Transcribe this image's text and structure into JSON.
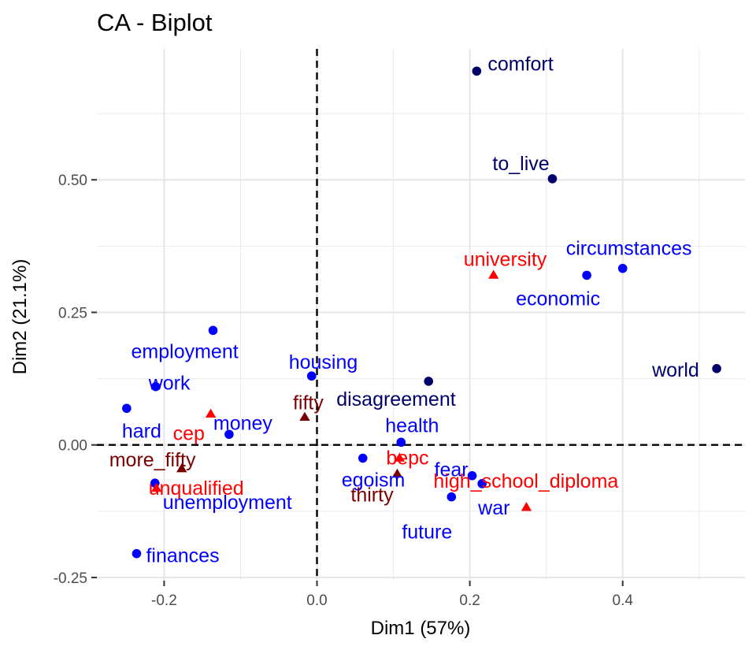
{
  "chart_data": {
    "type": "scatter",
    "title": "CA - Biplot",
    "xlabel": "Dim1 (57%)",
    "ylabel": "Dim2 (21.1%)",
    "xlim": [
      -0.288,
      0.56
    ],
    "ylim": [
      -0.256,
      0.747
    ],
    "x_ticks": [
      -0.2,
      0.0,
      0.2,
      0.4
    ],
    "x_tick_labels": [
      "-0.2",
      "0.0",
      "0.2",
      "0.4"
    ],
    "y_ticks": [
      -0.25,
      0.0,
      0.25,
      0.5
    ],
    "y_tick_labels": [
      "-0.25",
      "0.00",
      "0.25",
      "0.50"
    ],
    "grid": true,
    "reference_lines": [
      0,
      0
    ],
    "colors": {
      "words_navy": "#00006b",
      "words_blue": "#0000ff",
      "edu_red": "#ff0000",
      "age_darkred": "#7a0000"
    },
    "points": [
      {
        "label": "comfort",
        "x": 0.209,
        "y": 0.705,
        "shape": "circle",
        "color": "#00006b"
      },
      {
        "label": "to_live",
        "x": 0.308,
        "y": 0.502,
        "shape": "circle",
        "color": "#00006b"
      },
      {
        "label": "world",
        "x": 0.523,
        "y": 0.144,
        "shape": "circle",
        "color": "#00006b"
      },
      {
        "label": "disagreement",
        "x": 0.146,
        "y": 0.12,
        "shape": "circle",
        "color": "#00006b"
      },
      {
        "label": "circumstances",
        "x": 0.4,
        "y": 0.333,
        "shape": "circle",
        "color": "#0000ff"
      },
      {
        "label": "economic",
        "x": 0.353,
        "y": 0.32,
        "shape": "circle",
        "color": "#0000ff"
      },
      {
        "label": "employment",
        "x": -0.136,
        "y": 0.216,
        "shape": "circle",
        "color": "#0000ff"
      },
      {
        "label": "housing",
        "x": -0.007,
        "y": 0.13,
        "shape": "circle",
        "color": "#0000ff"
      },
      {
        "label": "work",
        "x": -0.211,
        "y": 0.11,
        "shape": "circle",
        "color": "#0000ff"
      },
      {
        "label": "hard",
        "x": -0.249,
        "y": 0.069,
        "shape": "circle",
        "color": "#0000ff"
      },
      {
        "label": "money",
        "x": -0.115,
        "y": 0.02,
        "shape": "circle",
        "color": "#0000ff"
      },
      {
        "label": "health",
        "x": 0.11,
        "y": 0.005,
        "shape": "circle",
        "color": "#0000ff"
      },
      {
        "label": "egoism",
        "x": 0.06,
        "y": -0.025,
        "shape": "circle",
        "color": "#0000ff"
      },
      {
        "label": "fear",
        "x": 0.203,
        "y": -0.058,
        "shape": "circle",
        "color": "#0000ff"
      },
      {
        "label": "war",
        "x": 0.216,
        "y": -0.073,
        "shape": "circle",
        "color": "#0000ff"
      },
      {
        "label": "future",
        "x": 0.176,
        "y": -0.098,
        "shape": "circle",
        "color": "#0000ff"
      },
      {
        "label": "unemployment",
        "x": -0.212,
        "y": -0.072,
        "shape": "circle",
        "color": "#0000ff"
      },
      {
        "label": "finances",
        "x": -0.236,
        "y": -0.205,
        "shape": "circle",
        "color": "#0000ff"
      },
      {
        "label": "university",
        "x": 0.231,
        "y": 0.32,
        "shape": "triangle",
        "color": "#ff0000"
      },
      {
        "label": "cep",
        "x": -0.139,
        "y": 0.058,
        "shape": "triangle",
        "color": "#ff0000"
      },
      {
        "label": "bepc",
        "x": 0.108,
        "y": -0.025,
        "shape": "triangle",
        "color": "#ff0000"
      },
      {
        "label": "high_school_diploma",
        "x": 0.274,
        "y": -0.118,
        "shape": "triangle",
        "color": "#ff0000"
      },
      {
        "label": "unqualified",
        "x": -0.21,
        "y": -0.082,
        "shape": "triangle",
        "color": "#ff0000"
      },
      {
        "label": "fifty",
        "x": -0.016,
        "y": 0.052,
        "shape": "triangle",
        "color": "#7a0000"
      },
      {
        "label": "thirty",
        "x": 0.105,
        "y": -0.055,
        "shape": "triangle",
        "color": "#7a0000"
      },
      {
        "label": "more_fifty",
        "x": -0.177,
        "y": -0.045,
        "shape": "triangle",
        "color": "#7a0000"
      }
    ]
  }
}
